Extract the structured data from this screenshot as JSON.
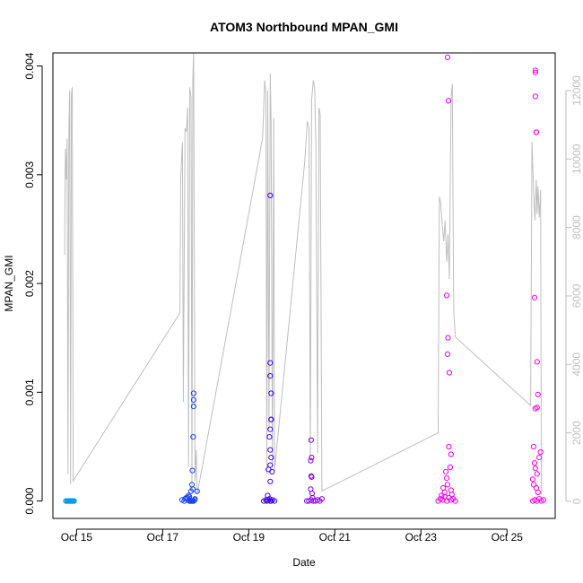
{
  "chart_data": {
    "type": "scatter",
    "title": "ATOM3 Northbound MPAN_GMI",
    "xlabel": "Date",
    "ylabel": "MPAN_GMI",
    "ylabel_right": "",
    "x_ticks": [
      "Oct 15",
      "Oct 17",
      "Oct 19",
      "Oct 21",
      "Oct 23",
      "Oct 25"
    ],
    "x_tick_days": [
      15,
      17,
      19,
      21,
      23,
      25
    ],
    "xlim": [
      14.45,
      26.12
    ],
    "y_ticks": [
      "0.000",
      "0.001",
      "0.002",
      "0.003",
      "0.004"
    ],
    "y_tick_values": [
      0,
      0.001,
      0.002,
      0.003,
      0.004
    ],
    "ylim": [
      -0.00016,
      0.00412
    ],
    "y2_ticks": [
      "0",
      "2000",
      "4000",
      "6000",
      "8000",
      "10000",
      "12000"
    ],
    "y2_tick_values": [
      0,
      2000,
      4000,
      6000,
      8000,
      10000,
      12000
    ],
    "y2lim": [
      -500,
      13100
    ],
    "grid": false,
    "legend": "none",
    "colors": {
      "line": "#bebebe",
      "frame": "#000000",
      "right_axis": "#bebebe",
      "flight_1": "#0099e6",
      "flight_2": "#1a44f0",
      "flight_3": "#3d00e8",
      "flight_4": "#8a00e8",
      "flight_5": "#e600e8",
      "flight_6": "#ff00dd"
    },
    "series": [
      {
        "kind": "points",
        "color": "#0099e6",
        "x": [
          14.75,
          14.78,
          14.8,
          14.82,
          14.84,
          14.86,
          14.88,
          14.9,
          14.92,
          14.94
        ],
        "y": [
          0,
          0,
          0,
          0,
          0,
          0,
          0,
          0,
          0,
          0
        ]
      },
      {
        "kind": "points",
        "color": "#1a44f0",
        "x": [
          17.45,
          17.52,
          17.58,
          17.62,
          17.64,
          17.66,
          17.68,
          17.7,
          17.72,
          17.74,
          17.66,
          17.68,
          17.7,
          17.6,
          17.62,
          17.72,
          17.72,
          17.72,
          17.71,
          17.69,
          17.8,
          17.5,
          17.55,
          17.75
        ],
        "y": [
          1e-05,
          2e-05,
          3e-05,
          0,
          0,
          0,
          0,
          0,
          0,
          1e-05,
          9e-05,
          0.00015,
          0.00011,
          5e-05,
          4e-05,
          0.00099,
          0.00093,
          0.00087,
          0.00059,
          0.00028,
          9e-05,
          0,
          3e-05,
          2e-05
        ]
      },
      {
        "kind": "points",
        "color": "#3d00e8",
        "x": [
          19.35,
          19.4,
          19.42,
          19.45,
          19.48,
          19.5,
          19.52,
          19.55,
          19.6,
          19.5,
          19.5,
          19.5,
          19.52,
          19.52,
          19.52,
          19.5,
          19.48,
          19.5,
          19.52,
          19.5,
          19.46,
          19.54,
          19.5,
          19.44
        ],
        "y": [
          0,
          1e-05,
          0,
          1e-05,
          2e-05,
          0,
          0,
          1e-05,
          0,
          0.00281,
          0.00127,
          0.00115,
          0.00099,
          0.00075,
          0.00075,
          0.00066,
          0.00059,
          0.00047,
          0.0004,
          0.00033,
          0.00029,
          0.00027,
          0.00018,
          5e-05
        ]
      },
      {
        "kind": "points",
        "color": "#8a00e8",
        "x": [
          20.35,
          20.4,
          20.45,
          20.5,
          20.55,
          20.6,
          20.65,
          20.7,
          20.45,
          20.46,
          20.44,
          20.45,
          20.46,
          20.44,
          20.47,
          20.48
        ],
        "y": [
          0,
          0,
          1e-05,
          0,
          0,
          1e-05,
          0,
          2e-05,
          0.00056,
          0.0004,
          0.00037,
          0.00023,
          0.00022,
          0.00011,
          7e-05,
          3e-05
        ]
      },
      {
        "kind": "points",
        "color": "#e600e8",
        "x": [
          23.4,
          23.45,
          23.5,
          23.55,
          23.6,
          23.65,
          23.7,
          23.75,
          23.8,
          23.62,
          23.64,
          23.6,
          23.63,
          23.62,
          23.66,
          23.65,
          23.7,
          23.68,
          23.58,
          23.6,
          23.62,
          23.52,
          23.7,
          23.55,
          23.72,
          23.48
        ],
        "y": [
          0,
          2e-05,
          1e-05,
          4e-05,
          0,
          3e-05,
          1e-05,
          2e-05,
          0,
          0.00408,
          0.00368,
          0.00189,
          0.0015,
          0.00135,
          0.00118,
          0.0005,
          0.00043,
          0.00031,
          0.00027,
          0.00021,
          0.00015,
          0.00012,
          0.0001,
          8e-05,
          6e-05,
          5e-05
        ]
      },
      {
        "kind": "points",
        "color": "#ff00dd",
        "x": [
          25.6,
          25.65,
          25.7,
          25.75,
          25.8,
          25.85,
          25.66,
          25.66,
          25.66,
          25.68,
          25.68,
          25.64,
          25.7,
          25.72,
          25.7,
          25.66,
          25.62,
          25.78,
          25.75,
          25.64,
          25.66,
          25.7,
          25.6,
          25.62,
          25.68,
          25.72
        ],
        "y": [
          0,
          1e-05,
          0,
          2e-05,
          0,
          1e-05,
          0.00396,
          0.00394,
          0.00372,
          0.00339,
          0.00339,
          0.00187,
          0.00128,
          0.00098,
          0.00086,
          0.00085,
          0.0005,
          0.00045,
          0.0004,
          0.00035,
          0.0003,
          0.00025,
          0.0002,
          0.00015,
          0.00012,
          8e-05
        ]
      },
      {
        "kind": "line",
        "axis": "right",
        "color": "#bebebe",
        "x": [
          14.72,
          14.74,
          14.76,
          14.78,
          14.8,
          14.82,
          14.84,
          14.86,
          14.88,
          14.9,
          14.92,
          17.4,
          17.42,
          17.46,
          17.48,
          17.52,
          17.55,
          17.58,
          17.6,
          17.63,
          17.66,
          17.68,
          17.7,
          17.72,
          17.75,
          17.78,
          17.8,
          19.32,
          19.34,
          19.37,
          19.4,
          19.42,
          19.44,
          19.47,
          19.5,
          19.52,
          19.55,
          19.58,
          19.6,
          20.3,
          20.33,
          20.36,
          20.4,
          20.43,
          20.46,
          20.5,
          20.53,
          20.56,
          20.6,
          20.63,
          20.66,
          20.7,
          23.4,
          23.43,
          23.46,
          23.5,
          23.53,
          23.56,
          23.6,
          23.63,
          23.66,
          23.7,
          23.73,
          23.76,
          23.8,
          25.55,
          25.58,
          25.62,
          25.65,
          25.68,
          25.7,
          25.72,
          25.75,
          25.78,
          25.8
        ],
        "y": [
          7200,
          10300,
          9400,
          10600,
          800,
          10900,
          12000,
          500,
          11900,
          12100,
          600,
          5500,
          9500,
          10500,
          2900,
          10900,
          10800,
          11500,
          1000,
          12100,
          11800,
          300,
          12400,
          13100,
          600,
          1500,
          200,
          10600,
          11200,
          12300,
          11900,
          800,
          12000,
          2100,
          12500,
          11000,
          1000,
          11200,
          900,
          9900,
          10500,
          11100,
          10900,
          1200,
          11700,
          12300,
          12100,
          10400,
          1400,
          11500,
          11300,
          300,
          2000,
          8900,
          8700,
          8000,
          7600,
          8200,
          7000,
          7800,
          6500,
          11800,
          12200,
          5600,
          4800,
          2800,
          10500,
          9000,
          8200,
          9400,
          8400,
          9200,
          8300,
          9100,
          200
        ]
      }
    ]
  }
}
